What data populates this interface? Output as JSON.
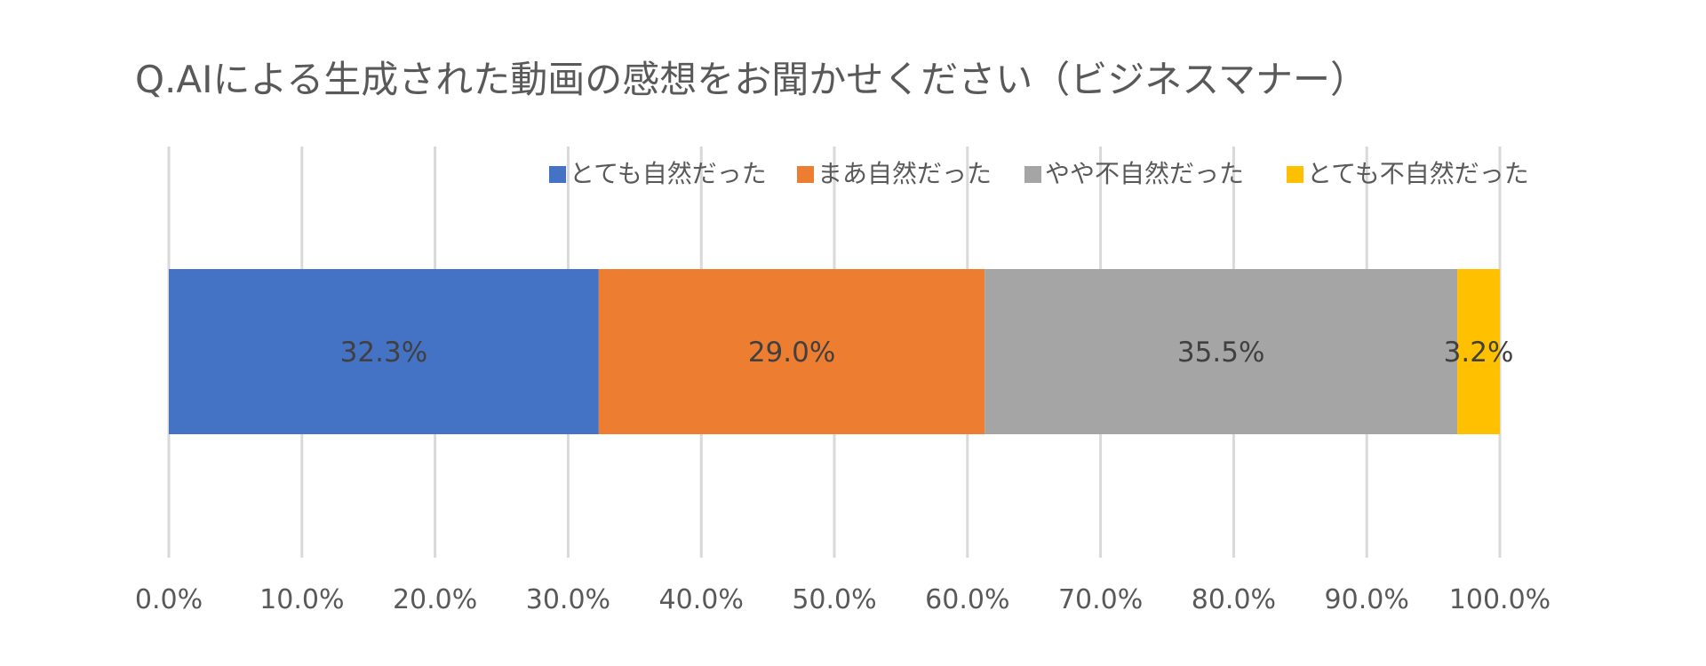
{
  "chart_data": {
    "type": "bar",
    "orientation": "horizontal",
    "stacked": true,
    "title": "Q.AIによる生成された動画の感想をお聞かせください（ビジネスマナー）",
    "xlabel": "",
    "ylabel": "",
    "xlim": [
      0,
      100
    ],
    "grid": true,
    "legend_position": "top-right",
    "categories": [
      ""
    ],
    "series": [
      {
        "name": "とても自然だった",
        "values": [
          32.3
        ],
        "label": "32.3%",
        "color": "#4472C4"
      },
      {
        "name": "まあ自然だった",
        "values": [
          29.0
        ],
        "label": "29.0%",
        "color": "#ED7D31"
      },
      {
        "name": "やや不自然だった",
        "values": [
          35.5
        ],
        "label": "35.5%",
        "color": "#A5A5A5"
      },
      {
        "name": "とても不自然だった",
        "values": [
          3.2
        ],
        "label": "3.2%",
        "color": "#FFC000"
      }
    ],
    "x_ticks": [
      {
        "value": 0,
        "label": "0.0%"
      },
      {
        "value": 10,
        "label": "10.0%"
      },
      {
        "value": 20,
        "label": "20.0%"
      },
      {
        "value": 30,
        "label": "30.0%"
      },
      {
        "value": 40,
        "label": "40.0%"
      },
      {
        "value": 50,
        "label": "50.0%"
      },
      {
        "value": 60,
        "label": "60.0%"
      },
      {
        "value": 70,
        "label": "70.0%"
      },
      {
        "value": 80,
        "label": "80.0%"
      },
      {
        "value": 90,
        "label": "90.0%"
      },
      {
        "value": 100,
        "label": "100.0%"
      }
    ]
  }
}
